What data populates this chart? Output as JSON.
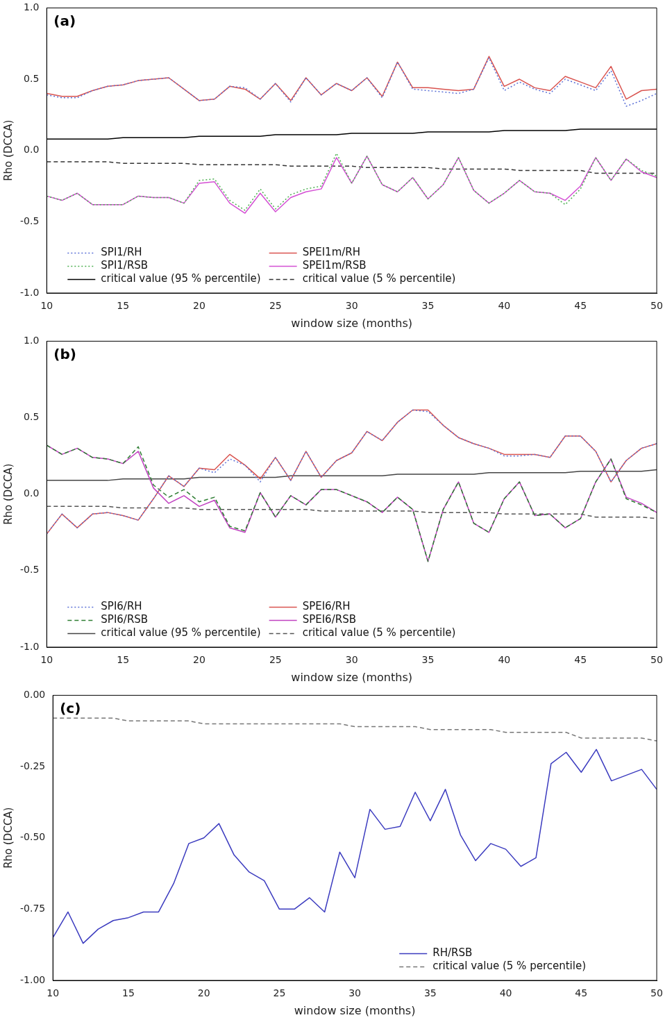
{
  "chart_data": [
    {
      "type": "line",
      "annotations": [
        "(a)"
      ],
      "xlabel": "window size (months)",
      "ylabel": "Rho (DCCA)",
      "marker": "none",
      "legend": "bottom left",
      "x": [
        10,
        11,
        12,
        13,
        14,
        15,
        16,
        17,
        18,
        19,
        20,
        21,
        22,
        23,
        24,
        25,
        26,
        27,
        28,
        29,
        30,
        31,
        32,
        33,
        34,
        35,
        36,
        37,
        38,
        39,
        40,
        41,
        42,
        43,
        44,
        45,
        46,
        47,
        48,
        49,
        50
      ],
      "xlim": [
        10,
        50
      ],
      "xticks": [
        10,
        15,
        20,
        25,
        30,
        35,
        40,
        45,
        50
      ],
      "ylim": [
        -1,
        1
      ],
      "yticks": [
        {
          "value": -1,
          "label": "-1.0"
        },
        {
          "value": -0.5,
          "label": "-0.5"
        },
        {
          "value": 0,
          "label": "0.0"
        },
        {
          "value": 0.5,
          "label": "0.5"
        },
        {
          "value": 1,
          "label": "1.0"
        }
      ],
      "series": [
        {
          "name": "SPI1/RH",
          "color": "#5a6fd6",
          "line_style": "dotted",
          "values": [
            0.39,
            0.37,
            0.37,
            0.42,
            0.45,
            0.46,
            0.49,
            0.5,
            0.51,
            0.43,
            0.35,
            0.36,
            0.45,
            0.44,
            0.36,
            0.47,
            0.34,
            0.51,
            0.39,
            0.47,
            0.42,
            0.51,
            0.37,
            0.62,
            0.43,
            0.42,
            0.41,
            0.4,
            0.43,
            0.65,
            0.42,
            0.48,
            0.43,
            0.4,
            0.5,
            0.46,
            0.42,
            0.56,
            0.31,
            0.35,
            0.4
          ]
        },
        {
          "name": "SPEI1m/RH",
          "color": "#d9534f",
          "line_style": "solid",
          "values": [
            0.4,
            0.38,
            0.38,
            0.42,
            0.45,
            0.46,
            0.49,
            0.5,
            0.51,
            0.43,
            0.35,
            0.36,
            0.45,
            0.43,
            0.36,
            0.47,
            0.35,
            0.51,
            0.39,
            0.47,
            0.42,
            0.51,
            0.38,
            0.62,
            0.44,
            0.44,
            0.43,
            0.42,
            0.43,
            0.66,
            0.45,
            0.5,
            0.44,
            0.42,
            0.52,
            0.48,
            0.44,
            0.59,
            0.36,
            0.42,
            0.43
          ]
        },
        {
          "name": "SPI1/RSB",
          "color": "#4caf50",
          "line_style": "dotted",
          "values": [
            -0.32,
            -0.35,
            -0.3,
            -0.38,
            -0.38,
            -0.38,
            -0.32,
            -0.33,
            -0.33,
            -0.37,
            -0.21,
            -0.2,
            -0.35,
            -0.42,
            -0.27,
            -0.41,
            -0.31,
            -0.27,
            -0.25,
            -0.02,
            -0.23,
            -0.04,
            -0.24,
            -0.29,
            -0.19,
            -0.34,
            -0.24,
            -0.05,
            -0.28,
            -0.37,
            -0.3,
            -0.21,
            -0.29,
            -0.3,
            -0.38,
            -0.27,
            -0.05,
            -0.21,
            -0.06,
            -0.14,
            -0.18
          ]
        },
        {
          "name": "SPEI1m/RSB",
          "color": "#d44fd4",
          "line_style": "solid",
          "values": [
            -0.32,
            -0.35,
            -0.3,
            -0.38,
            -0.38,
            -0.38,
            -0.32,
            -0.33,
            -0.33,
            -0.37,
            -0.23,
            -0.22,
            -0.37,
            -0.44,
            -0.3,
            -0.43,
            -0.33,
            -0.29,
            -0.27,
            -0.05,
            -0.23,
            -0.04,
            -0.24,
            -0.29,
            -0.19,
            -0.34,
            -0.24,
            -0.05,
            -0.28,
            -0.37,
            -0.3,
            -0.21,
            -0.29,
            -0.3,
            -0.35,
            -0.25,
            -0.05,
            -0.21,
            -0.06,
            -0.15,
            -0.19
          ]
        },
        {
          "name": "critical value (95 % percentile)",
          "color": "#000000",
          "line_style": "solid",
          "values": [
            0.08,
            0.08,
            0.08,
            0.08,
            0.08,
            0.09,
            0.09,
            0.09,
            0.09,
            0.09,
            0.1,
            0.1,
            0.1,
            0.1,
            0.1,
            0.11,
            0.11,
            0.11,
            0.11,
            0.11,
            0.12,
            0.12,
            0.12,
            0.12,
            0.12,
            0.13,
            0.13,
            0.13,
            0.13,
            0.13,
            0.14,
            0.14,
            0.14,
            0.14,
            0.14,
            0.15,
            0.15,
            0.15,
            0.15,
            0.15,
            0.15
          ]
        },
        {
          "name": "critical value (5 % percentile)",
          "color": "#333333",
          "line_style": "dashed",
          "values": [
            -0.08,
            -0.08,
            -0.08,
            -0.08,
            -0.08,
            -0.09,
            -0.09,
            -0.09,
            -0.09,
            -0.09,
            -0.1,
            -0.1,
            -0.1,
            -0.1,
            -0.1,
            -0.1,
            -0.11,
            -0.11,
            -0.11,
            -0.11,
            -0.11,
            -0.12,
            -0.12,
            -0.12,
            -0.12,
            -0.12,
            -0.13,
            -0.13,
            -0.13,
            -0.13,
            -0.13,
            -0.14,
            -0.14,
            -0.14,
            -0.14,
            -0.14,
            -0.16,
            -0.16,
            -0.16,
            -0.16,
            -0.16
          ]
        }
      ]
    },
    {
      "type": "line",
      "annotations": [
        "(b)"
      ],
      "xlabel": "window size (months)",
      "ylabel": "Rho (DCCA)",
      "marker": "none",
      "legend": "bottom left",
      "x": [
        10,
        11,
        12,
        13,
        14,
        15,
        16,
        17,
        18,
        19,
        20,
        21,
        22,
        23,
        24,
        25,
        26,
        27,
        28,
        29,
        30,
        31,
        32,
        33,
        34,
        35,
        36,
        37,
        38,
        39,
        40,
        41,
        42,
        43,
        44,
        45,
        46,
        47,
        48,
        49,
        50
      ],
      "xlim": [
        10,
        50
      ],
      "xticks": [
        10,
        15,
        20,
        25,
        30,
        35,
        40,
        45,
        50
      ],
      "ylim": [
        -1,
        1
      ],
      "yticks": [
        {
          "value": -1,
          "label": "-1.0"
        },
        {
          "value": -0.5,
          "label": "-0.5"
        },
        {
          "value": 0,
          "label": "0.0"
        },
        {
          "value": 0.5,
          "label": "0.5"
        },
        {
          "value": 1,
          "label": "1.0"
        }
      ],
      "series": [
        {
          "name": "SPI6/RH",
          "color": "#5a6fd6",
          "line_style": "dotted",
          "values": [
            -0.26,
            -0.13,
            -0.22,
            -0.13,
            -0.12,
            -0.14,
            -0.17,
            -0.03,
            0.12,
            0.05,
            0.17,
            0.14,
            0.23,
            0.19,
            0.08,
            0.24,
            0.09,
            0.28,
            0.11,
            0.22,
            0.27,
            0.41,
            0.35,
            0.47,
            0.55,
            0.54,
            0.45,
            0.37,
            0.33,
            0.3,
            0.25,
            0.25,
            0.26,
            0.24,
            0.38,
            0.38,
            0.28,
            0.08,
            0.22,
            0.3,
            0.33
          ]
        },
        {
          "name": "SPEI6/RH",
          "color": "#d9534f",
          "line_style": "solid",
          "values": [
            -0.26,
            -0.13,
            -0.22,
            -0.13,
            -0.12,
            -0.14,
            -0.17,
            -0.03,
            0.12,
            0.05,
            0.17,
            0.16,
            0.26,
            0.19,
            0.1,
            0.24,
            0.09,
            0.28,
            0.11,
            0.22,
            0.27,
            0.41,
            0.35,
            0.47,
            0.55,
            0.55,
            0.45,
            0.37,
            0.33,
            0.3,
            0.26,
            0.26,
            0.26,
            0.24,
            0.38,
            0.38,
            0.28,
            0.08,
            0.22,
            0.3,
            0.33
          ]
        },
        {
          "name": "SPI6/RSB",
          "color": "#2e7d32",
          "line_style": "dashed",
          "values": [
            0.32,
            0.26,
            0.3,
            0.24,
            0.23,
            0.2,
            0.31,
            0.06,
            -0.02,
            0.03,
            -0.05,
            -0.02,
            -0.21,
            -0.24,
            0.01,
            -0.15,
            -0.01,
            -0.07,
            0.03,
            0.03,
            -0.01,
            -0.05,
            -0.12,
            -0.02,
            -0.1,
            -0.44,
            -0.1,
            0.08,
            -0.19,
            -0.25,
            -0.03,
            0.08,
            -0.14,
            -0.13,
            -0.22,
            -0.16,
            0.08,
            0.23,
            -0.03,
            -0.07,
            -0.12
          ]
        },
        {
          "name": "SPEI6/RSB",
          "color": "#c040c0",
          "line_style": "solid",
          "values": [
            0.32,
            0.26,
            0.3,
            0.24,
            0.23,
            0.2,
            0.28,
            0.04,
            -0.06,
            -0.01,
            -0.08,
            -0.04,
            -0.22,
            -0.25,
            0.01,
            -0.15,
            -0.01,
            -0.07,
            0.03,
            0.03,
            -0.01,
            -0.05,
            -0.12,
            -0.02,
            -0.1,
            -0.44,
            -0.1,
            0.08,
            -0.19,
            -0.25,
            -0.03,
            0.08,
            -0.14,
            -0.13,
            -0.22,
            -0.16,
            0.08,
            0.23,
            -0.02,
            -0.06,
            -0.12
          ]
        },
        {
          "name": "critical value (95 % percentile)",
          "color": "#444444",
          "line_style": "solid",
          "values": [
            0.09,
            0.09,
            0.09,
            0.09,
            0.09,
            0.1,
            0.1,
            0.1,
            0.1,
            0.1,
            0.11,
            0.11,
            0.11,
            0.11,
            0.11,
            0.11,
            0.12,
            0.12,
            0.12,
            0.12,
            0.12,
            0.12,
            0.12,
            0.13,
            0.13,
            0.13,
            0.13,
            0.13,
            0.13,
            0.14,
            0.14,
            0.14,
            0.14,
            0.14,
            0.14,
            0.15,
            0.15,
            0.15,
            0.15,
            0.15,
            0.16
          ]
        },
        {
          "name": "critical value (5 % percentile)",
          "color": "#555555",
          "line_style": "dashed",
          "values": [
            -0.08,
            -0.08,
            -0.08,
            -0.08,
            -0.08,
            -0.09,
            -0.09,
            -0.09,
            -0.09,
            -0.09,
            -0.1,
            -0.1,
            -0.1,
            -0.1,
            -0.1,
            -0.1,
            -0.1,
            -0.1,
            -0.11,
            -0.11,
            -0.11,
            -0.11,
            -0.11,
            -0.11,
            -0.11,
            -0.12,
            -0.12,
            -0.12,
            -0.12,
            -0.12,
            -0.13,
            -0.13,
            -0.13,
            -0.13,
            -0.13,
            -0.13,
            -0.15,
            -0.15,
            -0.15,
            -0.15,
            -0.16
          ]
        }
      ]
    },
    {
      "type": "line",
      "annotations": [
        "(c)"
      ],
      "xlabel": "window size (months)",
      "ylabel": "Rho (DCCA)",
      "marker": "none",
      "legend": "bottom right",
      "x": [
        10,
        11,
        12,
        13,
        14,
        15,
        16,
        17,
        18,
        19,
        20,
        21,
        22,
        23,
        24,
        25,
        26,
        27,
        28,
        29,
        30,
        31,
        32,
        33,
        34,
        35,
        36,
        37,
        38,
        39,
        40,
        41,
        42,
        43,
        44,
        45,
        46,
        47,
        48,
        49,
        50
      ],
      "xlim": [
        10,
        50
      ],
      "xticks": [
        10,
        15,
        20,
        25,
        30,
        35,
        40,
        45,
        50
      ],
      "ylim": [
        -1,
        0
      ],
      "yticks": [
        {
          "value": -1,
          "label": "-1.00"
        },
        {
          "value": -0.75,
          "label": "-0.75"
        },
        {
          "value": -0.5,
          "label": "-0.50"
        },
        {
          "value": -0.25,
          "label": "-0.25"
        },
        {
          "value": 0,
          "label": "0.00"
        }
      ],
      "series": [
        {
          "name": "RH/RSB",
          "color": "#3b3bbf",
          "line_style": "solid",
          "values": [
            -0.85,
            -0.76,
            -0.87,
            -0.82,
            -0.79,
            -0.78,
            -0.76,
            -0.76,
            -0.66,
            -0.52,
            -0.5,
            -0.45,
            -0.56,
            -0.62,
            -0.65,
            -0.75,
            -0.75,
            -0.71,
            -0.76,
            -0.55,
            -0.64,
            -0.4,
            -0.47,
            -0.46,
            -0.34,
            -0.44,
            -0.33,
            -0.49,
            -0.58,
            -0.52,
            -0.54,
            -0.6,
            -0.57,
            -0.24,
            -0.2,
            -0.27,
            -0.19,
            -0.3,
            -0.28,
            -0.26,
            -0.33
          ]
        },
        {
          "name": "critical value (5 % percentile)",
          "color": "#777777",
          "line_style": "dashed",
          "values": [
            -0.08,
            -0.08,
            -0.08,
            -0.08,
            -0.08,
            -0.09,
            -0.09,
            -0.09,
            -0.09,
            -0.09,
            -0.1,
            -0.1,
            -0.1,
            -0.1,
            -0.1,
            -0.1,
            -0.1,
            -0.1,
            -0.1,
            -0.1,
            -0.11,
            -0.11,
            -0.11,
            -0.11,
            -0.11,
            -0.12,
            -0.12,
            -0.12,
            -0.12,
            -0.12,
            -0.13,
            -0.13,
            -0.13,
            -0.13,
            -0.13,
            -0.15,
            -0.15,
            -0.15,
            -0.15,
            -0.15,
            -0.16
          ]
        }
      ]
    }
  ]
}
